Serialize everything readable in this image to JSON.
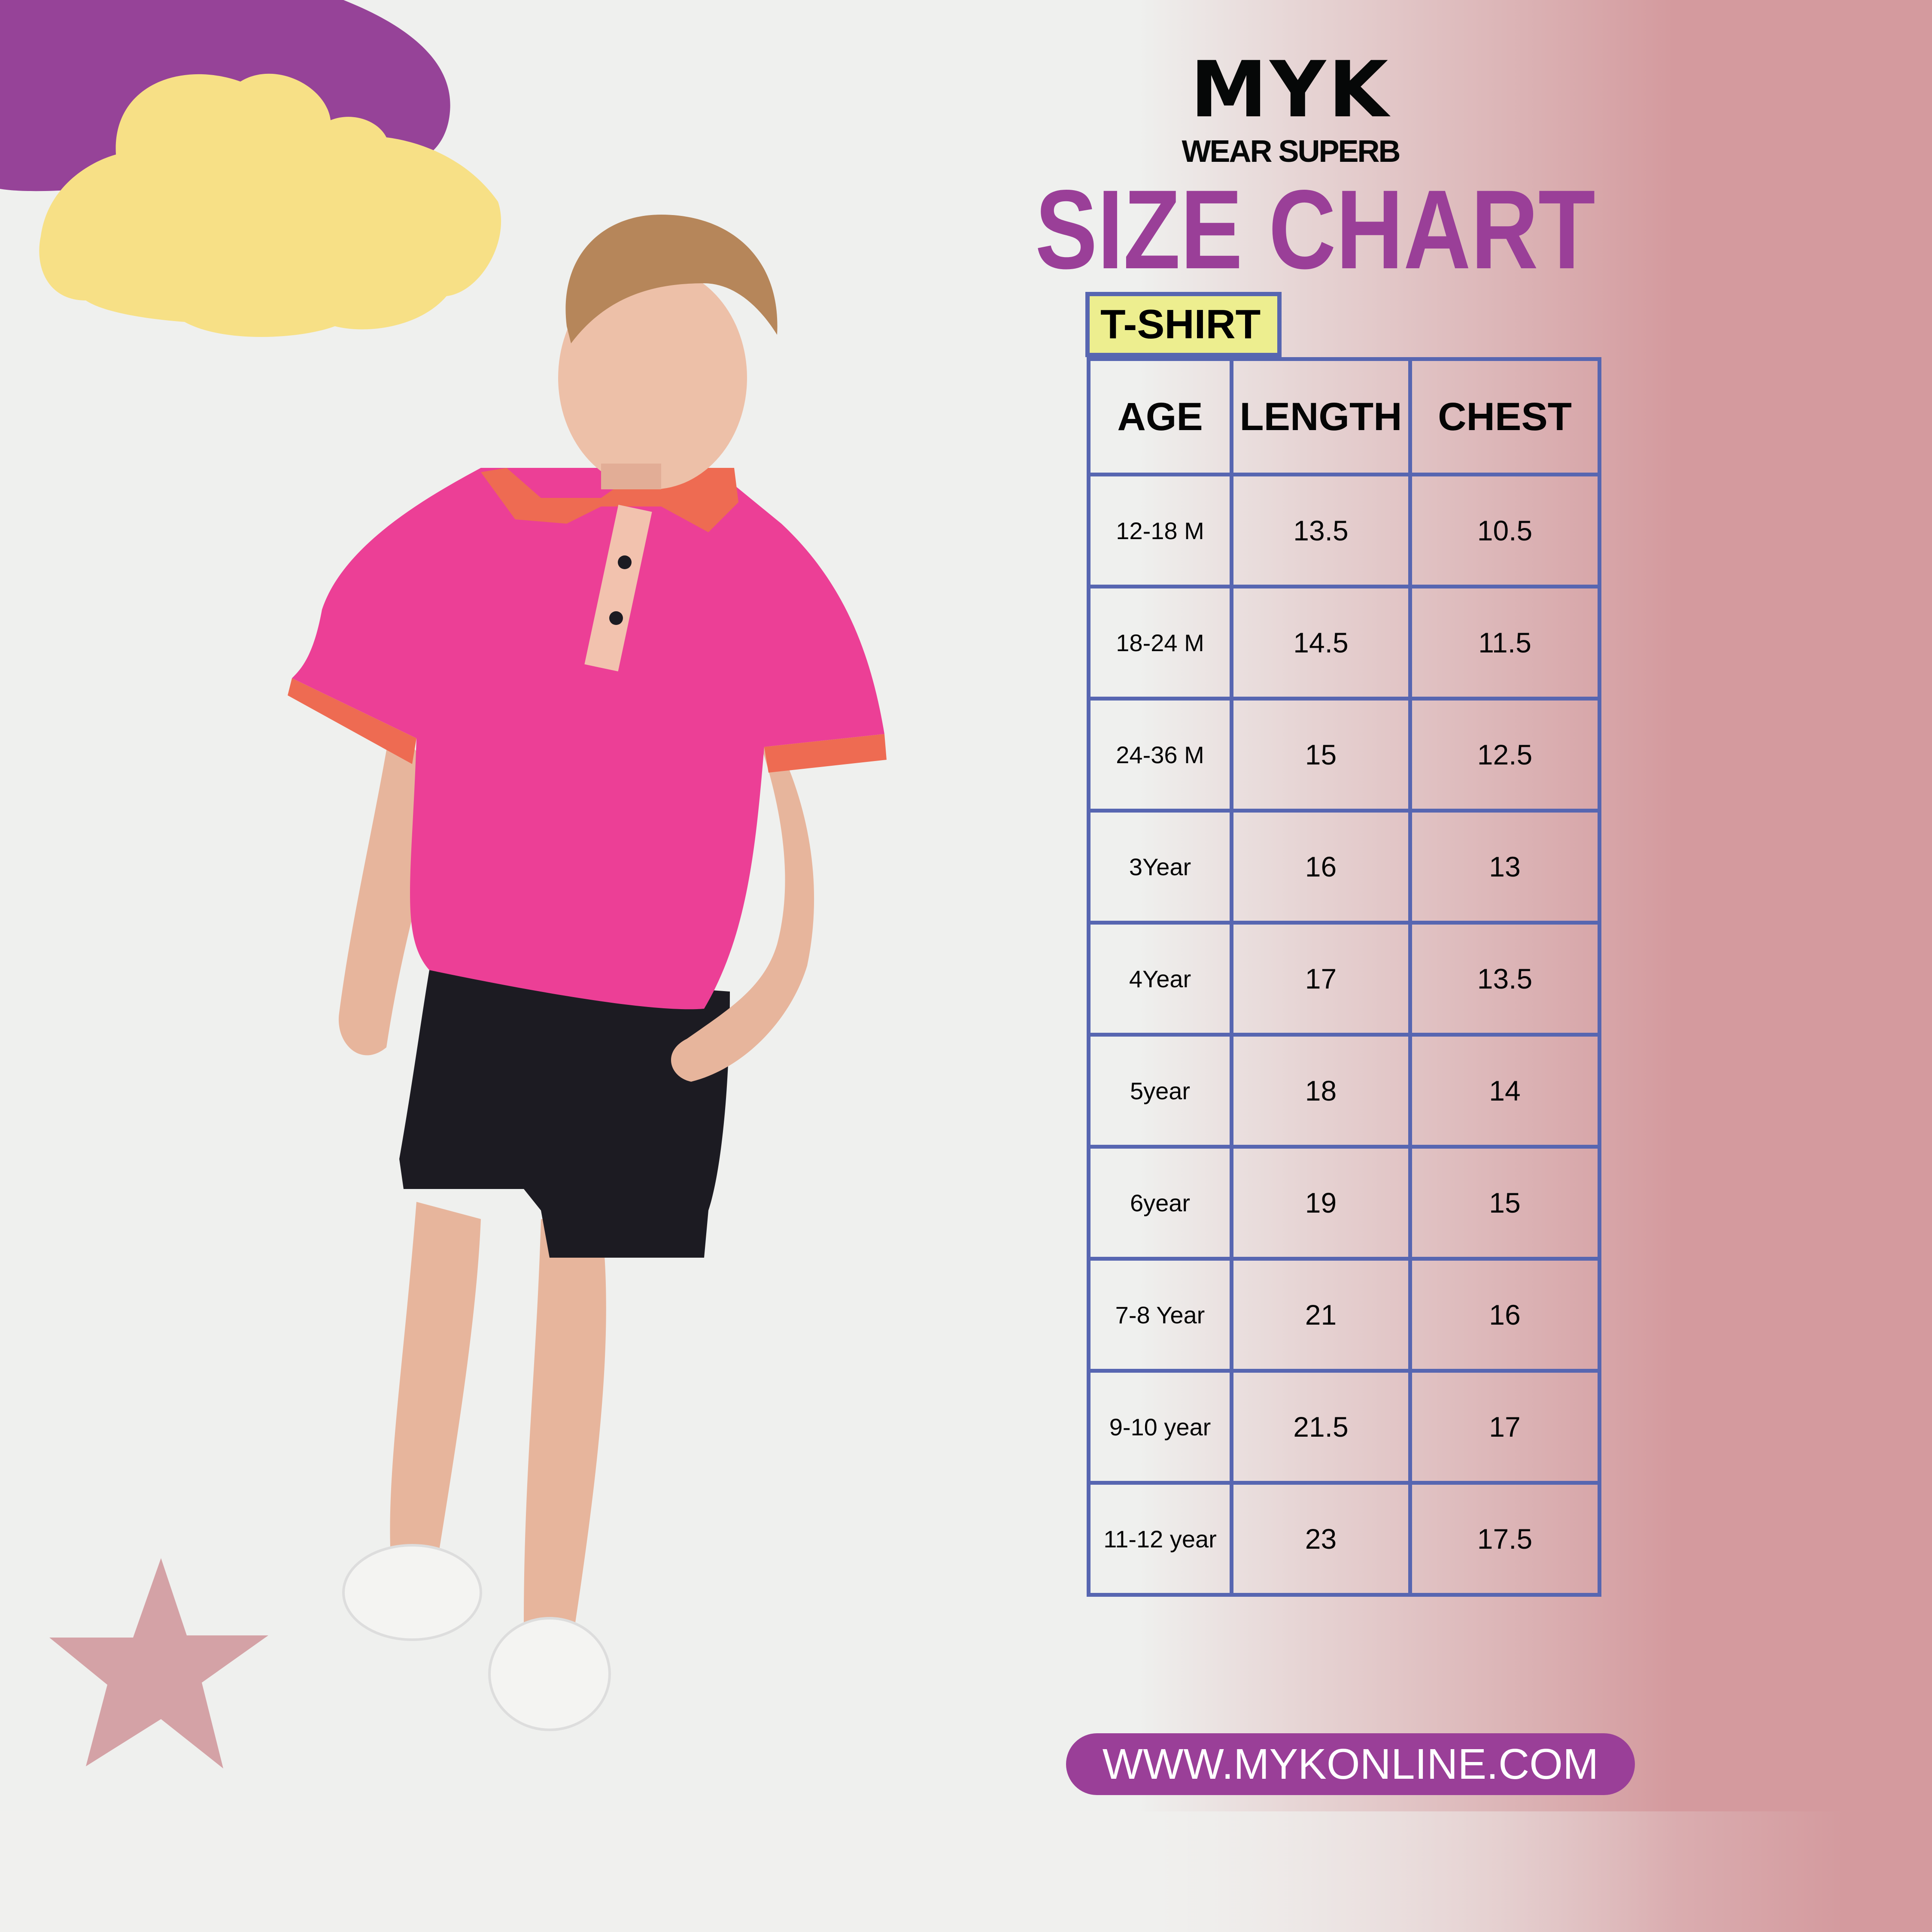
{
  "brand": {
    "name": "MYK",
    "tagline": "WEAR SUPERB"
  },
  "title": "SIZE CHART",
  "category_tab": "T-SHIRT",
  "table": {
    "headers": [
      "AGE",
      "LENGTH",
      "CHEST"
    ],
    "rows": [
      [
        "12-18 M",
        "13.5",
        "10.5"
      ],
      [
        "18-24 M",
        "14.5",
        "11.5"
      ],
      [
        "24-36 M",
        "15",
        "12.5"
      ],
      [
        "3Year",
        "16",
        "13"
      ],
      [
        "4Year",
        "17",
        "13.5"
      ],
      [
        "5year",
        "18",
        "14"
      ],
      [
        "6year",
        "19",
        "15"
      ],
      [
        "7-8 Year",
        "21",
        "16"
      ],
      [
        "9-10 year",
        "21.5",
        "17"
      ],
      [
        "11-12 year",
        "23",
        "17.5"
      ]
    ]
  },
  "website": "WWW.MYKONLINE.COM",
  "colors": {
    "accent_purple": "#9a3f98",
    "table_border": "#5766b1",
    "tab_yellow": "#edee8f",
    "cloud_yellow": "#f7e086",
    "star_pink": "#d4a2a6",
    "shirt_pink": "#ec3f96"
  }
}
